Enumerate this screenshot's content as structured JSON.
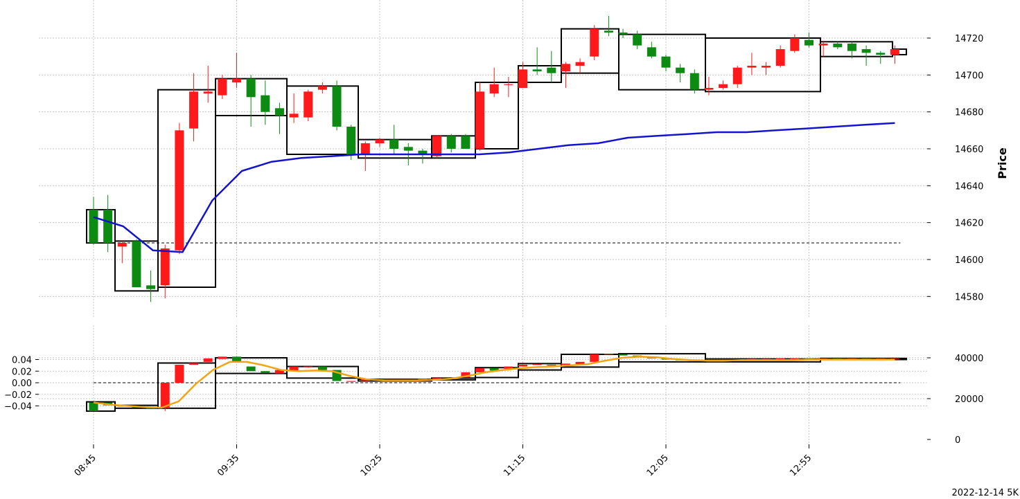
{
  "chart_data": [
    {
      "type": "candlestick",
      "panel": "price",
      "ylabel": "Price",
      "y_axis_side": "right",
      "ylim": [
        14570,
        14730
      ],
      "yticks": [
        "14580",
        "14600",
        "14620",
        "14640",
        "14660",
        "14680",
        "14700",
        "14720"
      ],
      "ytick_values": [
        14580,
        14600,
        14620,
        14640,
        14660,
        14680,
        14700,
        14720
      ],
      "grid": true,
      "candle_colors": {
        "up": "#fe1a1a",
        "down": "#0c8a12"
      },
      "reference_line": 14609,
      "ma_line": {
        "color": "#1414cc",
        "values": [
          14623,
          14618,
          14605,
          14604,
          14632,
          14648,
          14653,
          14655,
          14656,
          14657,
          14657,
          14657,
          14657,
          14657,
          14658,
          14660,
          14662,
          14663,
          14666,
          14667,
          14668,
          14669,
          14669,
          14670,
          14671,
          14672,
          14673,
          14674
        ]
      },
      "candles": [
        [
          14627,
          14634,
          14608,
          14609
        ],
        [
          14627,
          14635,
          14604,
          14609
        ],
        [
          14607,
          14610,
          14598,
          14609
        ],
        [
          14610,
          14611,
          14585,
          14585
        ],
        [
          14586,
          14594,
          14577,
          14584
        ],
        [
          14586,
          14608,
          14579,
          14606
        ],
        [
          14605,
          14674,
          14603,
          14670
        ],
        [
          14671,
          14701,
          14664,
          14691
        ],
        [
          14690,
          14705,
          14685,
          14691
        ],
        [
          14689,
          14700,
          14687,
          14698
        ],
        [
          14696,
          14712,
          14693,
          14698
        ],
        [
          14698,
          14700,
          14672,
          14688
        ],
        [
          14689,
          14697,
          14673,
          14680
        ],
        [
          14682,
          14685,
          14668,
          14678
        ],
        [
          14677,
          14690,
          14674,
          14679
        ],
        [
          14677,
          14692,
          14675,
          14691
        ],
        [
          14692,
          14696,
          14690,
          14694
        ],
        [
          14694,
          14697,
          14670,
          14672
        ],
        [
          14672,
          14673,
          14654,
          14657
        ],
        [
          14657,
          14664,
          14648,
          14663
        ],
        [
          14663,
          14666,
          14661,
          14665
        ],
        [
          14665,
          14673,
          14657,
          14660
        ],
        [
          14661,
          14663,
          14651,
          14659
        ],
        [
          14659,
          14660,
          14652,
          14657
        ],
        [
          14656,
          14667,
          14655,
          14667
        ],
        [
          14667,
          14668,
          14658,
          14660
        ],
        [
          14667,
          14668,
          14660,
          14660
        ],
        [
          14660,
          14696,
          14659,
          14691
        ],
        [
          14690,
          14704,
          14688,
          14695
        ],
        [
          14695,
          14699,
          14688,
          14695
        ],
        [
          14693,
          14707,
          14694,
          14703
        ],
        [
          14703,
          14715,
          14700,
          14702
        ],
        [
          14704,
          14713,
          14696,
          14701
        ],
        [
          14702,
          14707,
          14693,
          14706
        ],
        [
          14705,
          14709,
          14701,
          14707
        ],
        [
          14710,
          14727,
          14708,
          14725
        ],
        [
          14724,
          14732,
          14721,
          14723
        ],
        [
          14723,
          14725,
          14720,
          14722
        ],
        [
          14722,
          14724,
          14714,
          14716
        ],
        [
          14715,
          14718,
          14709,
          14710
        ],
        [
          14710,
          14711,
          14702,
          14704
        ],
        [
          14704,
          14706,
          14696,
          14701
        ],
        [
          14701,
          14703,
          14690,
          14692
        ],
        [
          14692,
          14699,
          14689,
          14693
        ],
        [
          14693,
          14697,
          14692,
          14695
        ],
        [
          14695,
          14705,
          14693,
          14704
        ],
        [
          14704,
          14712,
          14700,
          14705
        ],
        [
          14704,
          14707,
          14700,
          14705
        ],
        [
          14705,
          14716,
          14704,
          14714
        ],
        [
          14713,
          14722,
          14712,
          14720
        ],
        [
          14719,
          14723,
          14715,
          14716
        ],
        [
          14716,
          14718,
          14710,
          14717
        ],
        [
          14717,
          14718,
          14714,
          14715
        ],
        [
          14717,
          14718,
          14709,
          14713
        ],
        [
          14714,
          14716,
          14705,
          14712
        ],
        [
          14712,
          14713,
          14706,
          14711
        ],
        [
          14711,
          14716,
          14706,
          14714
        ]
      ],
      "boxes": [
        [
          14609,
          14627
        ],
        [
          14583,
          14610
        ],
        [
          14585,
          14692
        ],
        [
          14678,
          14698
        ],
        [
          14657,
          14694
        ],
        [
          14655,
          14665
        ],
        [
          14655,
          14667
        ],
        [
          14660,
          14696
        ],
        [
          14696,
          14705
        ],
        [
          14701,
          14725
        ],
        [
          14692,
          14722
        ],
        [
          14691,
          14720
        ],
        [
          14710,
          14718
        ],
        [
          14711,
          14714
        ]
      ]
    },
    {
      "type": "candlestick",
      "panel": "indicator",
      "ylim_left": [
        -0.05,
        0.05
      ],
      "yticks_left": [
        "−0.04",
        "−0.02",
        "0.00",
        "0.02",
        "0.04"
      ],
      "ytick_values_left": [
        -0.04,
        -0.02,
        0.0,
        0.02,
        0.04
      ],
      "yticks_right": [
        "0",
        "20000",
        "40000"
      ],
      "ytick_values_right": [
        0,
        20000,
        40000
      ],
      "grid": true,
      "reference_line": 0.0,
      "ma_line": {
        "color": "#f2a413",
        "values": [
          -0.034,
          -0.038,
          -0.04,
          -0.042,
          -0.043,
          -0.032,
          -0.002,
          0.022,
          0.036,
          0.036,
          0.03,
          0.022,
          0.02,
          0.021,
          0.02,
          0.012,
          0.006,
          0.004,
          0.004,
          0.004,
          0.005,
          0.007,
          0.012,
          0.018,
          0.022,
          0.025,
          0.027,
          0.028,
          0.03,
          0.032,
          0.038,
          0.043,
          0.045,
          0.044,
          0.041,
          0.039,
          0.038,
          0.038,
          0.039,
          0.039,
          0.039,
          0.039,
          0.04,
          0.04,
          0.04,
          0.04,
          0.04,
          0.04
        ]
      },
      "candles": [
        [
          -0.034,
          -0.034,
          -0.049,
          -0.049
        ],
        [
          -0.034,
          -0.034,
          -0.039,
          -0.039
        ],
        [
          -0.039,
          -0.039,
          -0.041,
          -0.041
        ],
        [
          -0.04,
          -0.04,
          -0.043,
          -0.043
        ],
        [
          -0.043,
          -0.043,
          -0.044,
          -0.044
        ],
        [
          -0.044,
          0.0,
          -0.049,
          0.0
        ],
        [
          0.0,
          0.031,
          -0.001,
          0.031
        ],
        [
          0.031,
          0.034,
          0.031,
          0.034
        ],
        [
          0.036,
          0.042,
          0.036,
          0.042
        ],
        [
          0.041,
          0.045,
          0.041,
          0.045
        ],
        [
          0.045,
          0.045,
          0.036,
          0.036
        ],
        [
          0.028,
          0.028,
          0.02,
          0.02
        ],
        [
          0.02,
          0.02,
          0.017,
          0.017
        ],
        [
          0.016,
          0.022,
          0.016,
          0.022
        ],
        [
          0.02,
          0.028,
          0.02,
          0.028
        ],
        [
          0.027,
          0.028,
          0.026,
          0.028
        ],
        [
          0.028,
          0.028,
          0.022,
          0.022
        ],
        [
          0.022,
          0.022,
          0.003,
          0.003
        ],
        [
          0.003,
          0.003,
          0.003,
          0.003
        ],
        [
          0.003,
          0.006,
          0.003,
          0.006
        ],
        [
          0.006,
          0.006,
          0.005,
          0.005
        ],
        [
          0.005,
          0.005,
          0.004,
          0.004
        ],
        [
          0.004,
          0.005,
          0.004,
          0.005
        ],
        [
          0.005,
          0.007,
          0.005,
          0.007
        ],
        [
          0.007,
          0.008,
          0.007,
          0.008
        ],
        [
          0.008,
          0.008,
          0.007,
          0.007
        ],
        [
          0.009,
          0.018,
          0.009,
          0.018
        ],
        [
          0.018,
          0.025,
          0.018,
          0.025
        ],
        [
          0.025,
          0.025,
          0.021,
          0.021
        ],
        [
          0.024,
          0.028,
          0.024,
          0.028
        ],
        [
          0.028,
          0.031,
          0.028,
          0.031
        ],
        [
          0.031,
          0.032,
          0.031,
          0.032
        ],
        [
          0.03,
          0.031,
          0.03,
          0.031
        ],
        [
          0.031,
          0.033,
          0.031,
          0.033
        ],
        [
          0.032,
          0.036,
          0.032,
          0.036
        ],
        [
          0.036,
          0.049,
          0.036,
          0.049
        ],
        [
          0.049,
          0.05,
          0.049,
          0.05
        ],
        [
          0.049,
          0.049,
          0.047,
          0.047
        ],
        [
          0.047,
          0.047,
          0.045,
          0.045
        ],
        [
          0.045,
          0.045,
          0.042,
          0.042
        ],
        [
          0.042,
          0.042,
          0.04,
          0.04
        ],
        [
          0.04,
          0.04,
          0.039,
          0.039
        ],
        [
          0.039,
          0.04,
          0.039,
          0.04
        ],
        [
          0.039,
          0.039,
          0.038,
          0.038
        ],
        [
          0.038,
          0.039,
          0.038,
          0.039
        ],
        [
          0.039,
          0.04,
          0.039,
          0.04
        ],
        [
          0.04,
          0.041,
          0.04,
          0.041
        ],
        [
          0.04,
          0.041,
          0.04,
          0.041
        ],
        [
          0.041,
          0.042,
          0.041,
          0.042
        ],
        [
          0.041,
          0.042,
          0.041,
          0.042
        ],
        [
          0.042,
          0.042,
          0.041,
          0.041
        ],
        [
          0.041,
          0.042,
          0.041,
          0.042
        ],
        [
          0.042,
          0.042,
          0.041,
          0.041
        ],
        [
          0.041,
          0.042,
          0.041,
          0.042
        ],
        [
          0.042,
          0.042,
          0.041,
          0.041
        ],
        [
          0.041,
          0.042,
          0.041,
          0.042
        ],
        [
          0.041,
          0.042,
          0.041,
          0.042
        ]
      ],
      "boxes": [
        [
          -0.049,
          -0.033
        ],
        [
          -0.044,
          -0.039
        ],
        [
          -0.044,
          0.034
        ],
        [
          0.016,
          0.043
        ],
        [
          0.008,
          0.028
        ],
        [
          0.003,
          0.006
        ],
        [
          0.005,
          0.008
        ],
        [
          0.009,
          0.026
        ],
        [
          0.022,
          0.033
        ],
        [
          0.027,
          0.049
        ],
        [
          0.036,
          0.05
        ],
        [
          0.036,
          0.041
        ],
        [
          0.04,
          0.042
        ],
        [
          0.04,
          0.042
        ]
      ]
    }
  ],
  "x_axis": {
    "tick_labels": [
      "08:45",
      "09:35",
      "10:25",
      "11:15",
      "12:05",
      "12:55"
    ],
    "tick_indices": [
      0,
      10,
      20,
      30,
      40,
      50
    ]
  },
  "footer_text": "2022-12-14 5K"
}
